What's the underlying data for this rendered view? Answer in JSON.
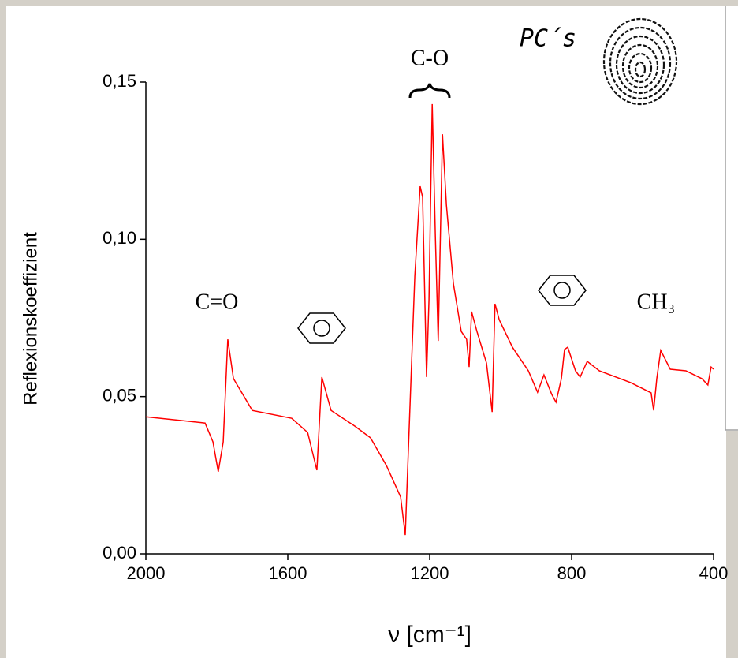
{
  "chart_data": {
    "type": "line",
    "ylabel": "Reflexionskoeffizient",
    "xlabel": "ν  [cm⁻¹]",
    "annotations": [
      "C=O",
      "C-O",
      "CH₃",
      "PC´s"
    ],
    "color": "#ff0000",
    "xlim": [
      2000,
      400
    ],
    "xticks": [
      2000,
      1600,
      1200,
      800,
      400
    ],
    "ylim": [
      0,
      0.15
    ],
    "yticks": [
      {
        "value": 0,
        "label": "0,00"
      },
      {
        "value": 0.05,
        "label": "0,05"
      },
      {
        "value": 0.1,
        "label": "0,10"
      },
      {
        "value": 0.15,
        "label": "0,15"
      }
    ],
    "x": [
      2000,
      1833,
      1811,
      1796,
      1782,
      1769,
      1753,
      1700,
      1589,
      1544,
      1518,
      1504,
      1478,
      1411,
      1367,
      1322,
      1282,
      1269,
      1256,
      1242,
      1227,
      1220,
      1209,
      1202,
      1193,
      1184,
      1176,
      1164,
      1153,
      1133,
      1111,
      1096,
      1089,
      1082,
      1067,
      1040,
      1024,
      1016,
      1004,
      967,
      922,
      896,
      878,
      856,
      844,
      829,
      820,
      811,
      789,
      776,
      756,
      722,
      633,
      576,
      569,
      560,
      549,
      522,
      478,
      433,
      416,
      407,
      400
    ],
    "values": [
      0.0436,
      0.0416,
      0.0356,
      0.0261,
      0.0356,
      0.0682,
      0.0557,
      0.0456,
      0.0431,
      0.0386,
      0.0266,
      0.0562,
      0.0456,
      0.0406,
      0.0369,
      0.0281,
      0.0181,
      0.006,
      0.0456,
      0.0883,
      0.1169,
      0.1134,
      0.0562,
      0.0808,
      0.143,
      0.1008,
      0.0677,
      0.1334,
      0.1109,
      0.0858,
      0.0707,
      0.0682,
      0.0594,
      0.077,
      0.0707,
      0.0607,
      0.0451,
      0.0795,
      0.0744,
      0.0657,
      0.0582,
      0.0514,
      0.0569,
      0.0507,
      0.0482,
      0.0557,
      0.065,
      0.0657,
      0.0582,
      0.0562,
      0.0612,
      0.0582,
      0.0544,
      0.0512,
      0.0456,
      0.0557,
      0.0647,
      0.0587,
      0.0582,
      0.0557,
      0.0537,
      0.0594,
      0.0587
    ]
  }
}
